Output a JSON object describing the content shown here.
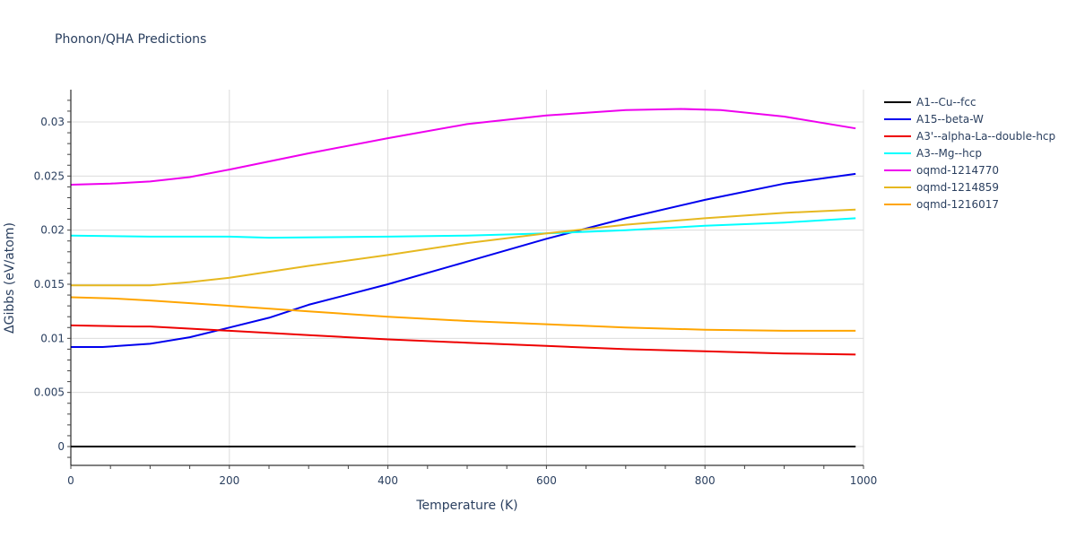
{
  "title": "Phonon/QHA Predictions",
  "chart_data": {
    "type": "line",
    "title": "Phonon/QHA Predictions",
    "xlabel": "Temperature (K)",
    "ylabel": "ΔGibbs (eV/atom)",
    "xlim": [
      0,
      1000
    ],
    "ylim": [
      -0.0018,
      0.033
    ],
    "xticks": [
      0,
      200,
      400,
      600,
      800,
      1000
    ],
    "xtick_labels": [
      "0",
      "200",
      "400",
      "600",
      "800",
      "1000"
    ],
    "yticks": [
      0,
      0.005,
      0.01,
      0.015,
      0.02,
      0.025,
      0.03
    ],
    "ytick_labels": [
      "0",
      "0.005",
      "0.01",
      "0.015",
      "0.02",
      "0.025",
      "0.03"
    ],
    "grid": true,
    "legend_position": "right",
    "series": [
      {
        "name": "A1--Cu--fcc",
        "color": "#000000",
        "x": [
          0,
          200,
          400,
          600,
          800,
          990
        ],
        "y": [
          0,
          0,
          0,
          0,
          0,
          0
        ]
      },
      {
        "name": "A15--beta-W",
        "color": "#0000ee",
        "x": [
          0,
          40,
          100,
          150,
          200,
          250,
          300,
          400,
          500,
          600,
          700,
          800,
          900,
          990
        ],
        "y": [
          0.0092,
          0.0092,
          0.0095,
          0.0101,
          0.011,
          0.0119,
          0.0131,
          0.015,
          0.0171,
          0.0192,
          0.0211,
          0.0228,
          0.0243,
          0.0252
        ]
      },
      {
        "name": "A3'--alpha-La--double-hcp",
        "color": "#ee0000",
        "x": [
          0,
          80,
          100,
          200,
          300,
          400,
          500,
          600,
          700,
          800,
          900,
          990
        ],
        "y": [
          0.0112,
          0.0111,
          0.0111,
          0.0107,
          0.0103,
          0.0099,
          0.0096,
          0.0093,
          0.009,
          0.0088,
          0.0086,
          0.0085
        ]
      },
      {
        "name": "A3--Mg--hcp",
        "color": "#00ffff",
        "x": [
          0,
          100,
          200,
          250,
          400,
          500,
          600,
          700,
          800,
          900,
          990
        ],
        "y": [
          0.0195,
          0.0194,
          0.0194,
          0.0193,
          0.0194,
          0.0195,
          0.0197,
          0.02,
          0.0204,
          0.0207,
          0.0211
        ]
      },
      {
        "name": "oqmd-1214770",
        "color": "#ee00ee",
        "x": [
          0,
          50,
          100,
          150,
          200,
          300,
          400,
          500,
          600,
          700,
          770,
          820,
          900,
          990
        ],
        "y": [
          0.0242,
          0.0243,
          0.0245,
          0.0249,
          0.0256,
          0.0271,
          0.0285,
          0.0298,
          0.0306,
          0.0311,
          0.0312,
          0.0311,
          0.0305,
          0.0294
        ]
      },
      {
        "name": "oqmd-1214859",
        "color": "#e6b820",
        "x": [
          0,
          100,
          150,
          200,
          300,
          400,
          500,
          600,
          700,
          800,
          900,
          990
        ],
        "y": [
          0.0149,
          0.0149,
          0.0152,
          0.0156,
          0.0167,
          0.0177,
          0.0188,
          0.0197,
          0.0205,
          0.0211,
          0.0216,
          0.0219
        ]
      },
      {
        "name": "oqmd-1216017",
        "color": "#ffa500",
        "x": [
          0,
          50,
          100,
          200,
          300,
          400,
          500,
          600,
          700,
          800,
          900,
          990
        ],
        "y": [
          0.0138,
          0.0137,
          0.0135,
          0.013,
          0.0125,
          0.012,
          0.0116,
          0.0113,
          0.011,
          0.0108,
          0.0107,
          0.0107
        ]
      }
    ]
  }
}
